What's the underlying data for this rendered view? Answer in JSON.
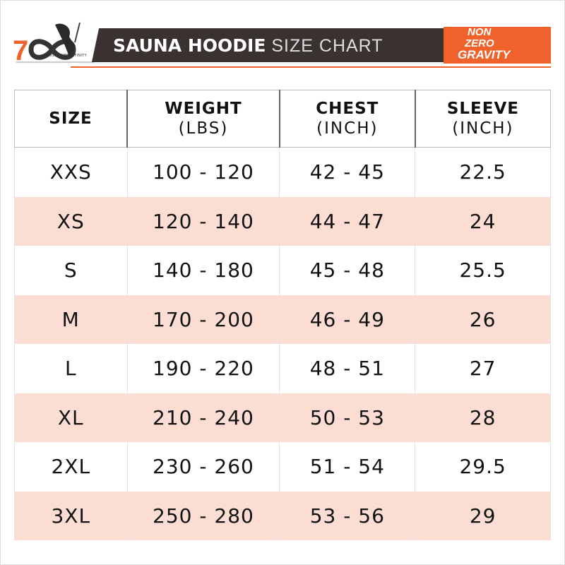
{
  "header": {
    "title_bold": "SAUNA HOODIE",
    "title_light": "SIZE CHART",
    "logo_left": {
      "text": "700",
      "caption": "CROSS OVER INFINITY"
    },
    "logo_right": {
      "lines": [
        "NON",
        "ZERO",
        "GRAVITY"
      ]
    },
    "colors": {
      "accent": "#f0622b",
      "banner": "#3a3231",
      "row_alt": "#fbddd4"
    }
  },
  "table": {
    "columns": [
      {
        "label": "SIZE",
        "unit": ""
      },
      {
        "label": "WEIGHT",
        "unit": "(LBS)"
      },
      {
        "label": "CHEST",
        "unit": "(INCH)"
      },
      {
        "label": "SLEEVE",
        "unit": "(INCH)"
      }
    ],
    "rows": [
      [
        "XXS",
        "100 - 120",
        "42 - 45",
        "22.5"
      ],
      [
        "XS",
        "120 - 140",
        "44 - 47",
        "24"
      ],
      [
        "S",
        "140 - 180",
        "45 - 48",
        "25.5"
      ],
      [
        "M",
        "170 - 200",
        "46 - 49",
        "26"
      ],
      [
        "L",
        "190 - 220",
        "48 - 51",
        "27"
      ],
      [
        "XL",
        "210 - 240",
        "50 - 53",
        "28"
      ],
      [
        "2XL",
        "230 - 260",
        "51 - 54",
        "29.5"
      ],
      [
        "3XL",
        "250 - 280",
        "53 - 56",
        "29"
      ]
    ]
  }
}
